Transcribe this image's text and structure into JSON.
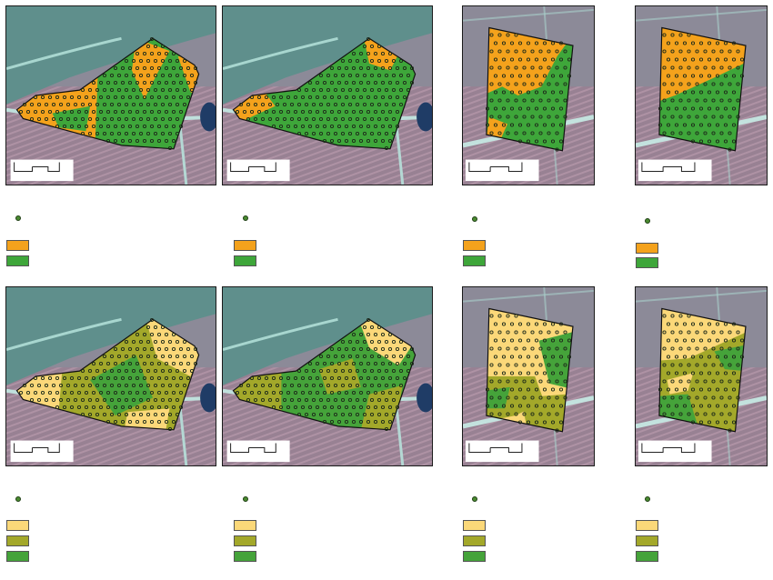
{
  "colors": {
    "orange": "#f4a21c",
    "green": "#3ea63a",
    "light_yellow": "#fbd879",
    "olive": "#a3a82a",
    "mid_green": "#45a33a",
    "field_bg": "#8aa0a8",
    "water": "#1f3c66"
  },
  "legend_2class": {
    "sample_point": "",
    "class_a": "",
    "class_b": ""
  },
  "legend_3class": {
    "sample_point": "",
    "class_a": "",
    "class_b": "",
    "class_c": ""
  },
  "icons": {
    "sample": "circle-point-icon",
    "north": "north-arrow-icon"
  }
}
